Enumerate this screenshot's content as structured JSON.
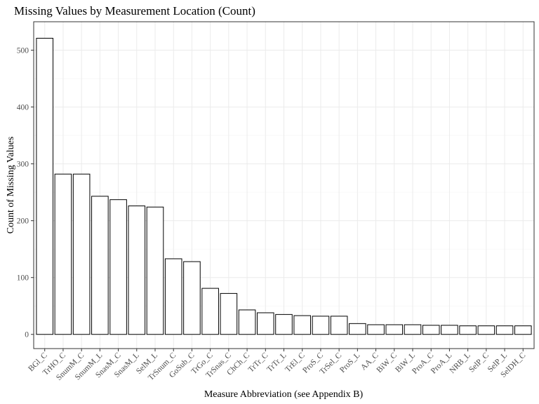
{
  "chart_data": {
    "type": "bar",
    "title": "Missing Values by Measurement Location (Count)",
    "xlabel": "Measure Abbreviation (see Appendix B)",
    "ylabel": "Count of Missing Values",
    "ylim": [
      -25,
      550
    ],
    "yticks": [
      0,
      100,
      200,
      300,
      400,
      500
    ],
    "grid": true,
    "legend": "none",
    "bar_fill": "#ffffff",
    "bar_stroke": "#000000",
    "categories": [
      "BGl_C",
      "TrHO_C",
      "SnumM_C",
      "SnumM_L",
      "SnasM_C",
      "SnasM_L",
      "SelM_L",
      "TrSnum_C",
      "GoSub_C",
      "TrGo_C",
      "TrSnas_C",
      "ChCh_C",
      "TrTr_C",
      "TrTr_L",
      "TrEl_C",
      "ProS_C",
      "TrSel_C",
      "ProS_L",
      "AA_C",
      "BiW_C",
      "BiW_L",
      "ProA_C",
      "ProA_L",
      "NRB_L",
      "SelP_C",
      "SelP_L",
      "SelDH_C"
    ],
    "values": [
      521,
      282,
      282,
      243,
      237,
      226,
      224,
      133,
      128,
      81,
      72,
      43,
      38,
      35,
      33,
      32,
      32,
      19,
      17,
      17,
      17,
      16,
      16,
      15,
      15,
      15,
      15
    ]
  }
}
